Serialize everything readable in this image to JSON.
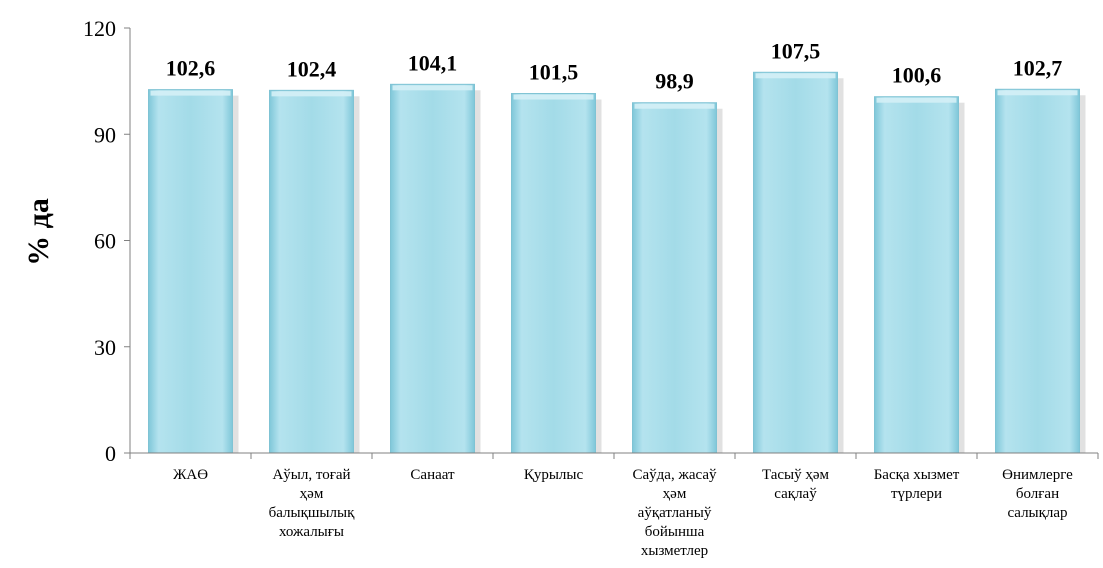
{
  "chart_data": {
    "type": "bar",
    "categories": [
      [
        "ЖАӨ"
      ],
      [
        "Аўыл, тоғай",
        "ҳәм",
        "балықшылық",
        "хожалығы"
      ],
      [
        "Санаат"
      ],
      [
        "Қурылыс"
      ],
      [
        "Саўда, жасаў",
        "ҳәм",
        "аўқатланыў",
        "бойынша",
        "хызметлер"
      ],
      [
        "Тасыў ҳәм",
        "сақлаў"
      ],
      [
        "Басқа хызмет",
        "түрлери"
      ],
      [
        "Өнимлерге",
        "болған",
        "салықлар"
      ]
    ],
    "values": [
      102.6,
      102.4,
      104.1,
      101.5,
      98.9,
      107.5,
      100.6,
      102.7
    ],
    "value_labels": [
      "102,6",
      "102,4",
      "104,1",
      "101,5",
      "98,9",
      "107,5",
      "100,6",
      "102,7"
    ],
    "ylabel": "% да",
    "ylim": [
      0,
      120
    ],
    "yticks": [
      0,
      30,
      60,
      90,
      120
    ],
    "grid": false,
    "bar_color": "#9ed8e6",
    "bar_edge_color": "#7fc3d4",
    "shadow_color": "#c8c8c8"
  }
}
